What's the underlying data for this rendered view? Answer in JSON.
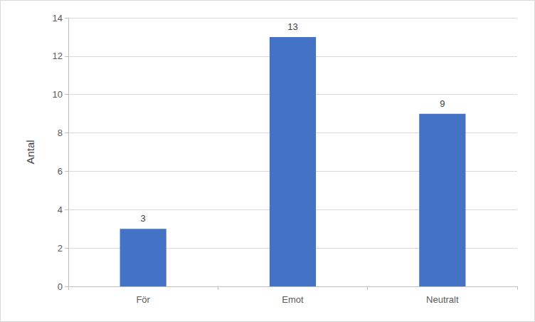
{
  "chart_data": {
    "type": "bar",
    "y_label": "Antal",
    "categories": [
      "För",
      "Emot",
      "Neutralt"
    ],
    "values": [
      3,
      13,
      9
    ],
    "color": "#4472c4",
    "ylim": [
      0,
      14
    ],
    "yticks": [
      0,
      2,
      4,
      6,
      8,
      10,
      12,
      14
    ],
    "grid": true,
    "data_labels": true
  }
}
